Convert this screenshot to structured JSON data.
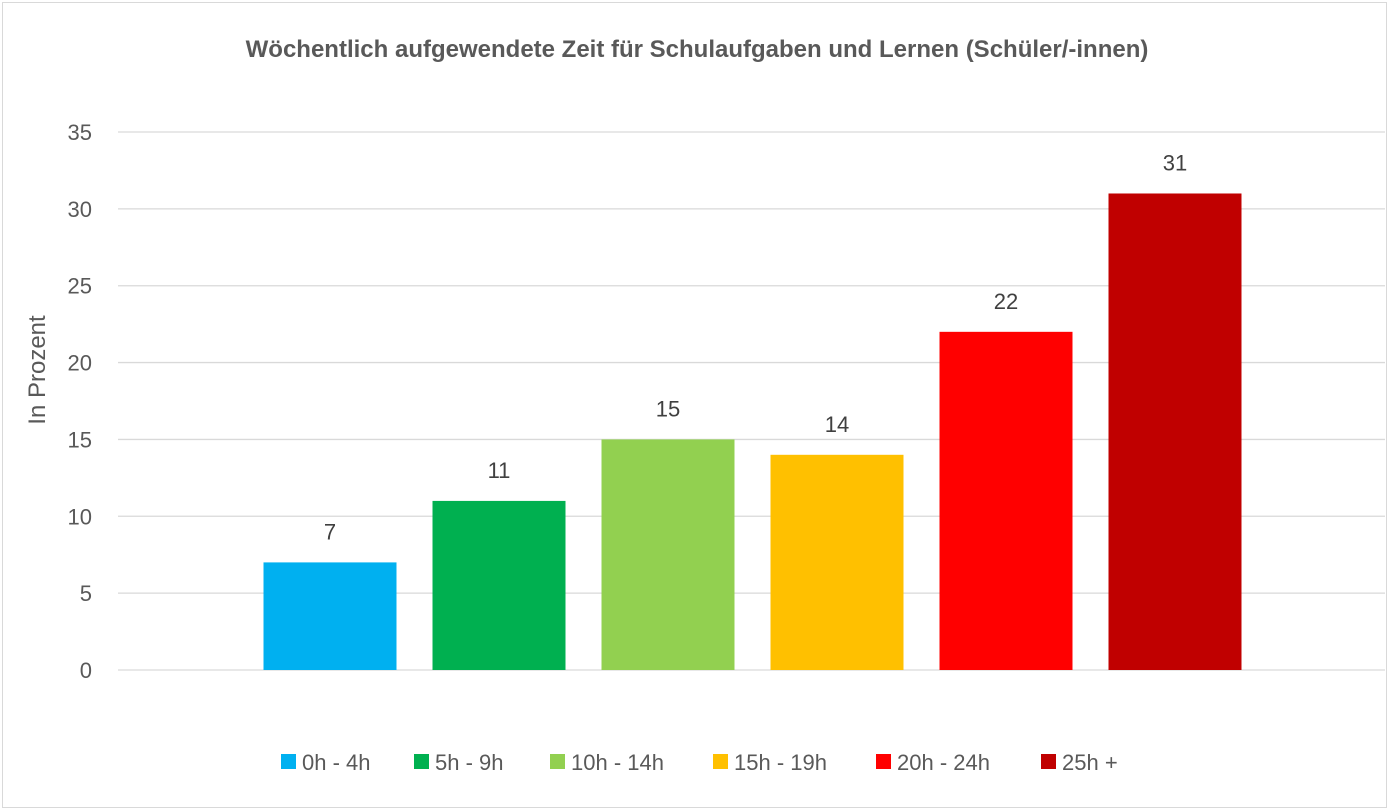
{
  "chart_data": {
    "type": "bar",
    "title": "Wöchentlich aufgewendete Zeit für Schulaufgaben und Lernen (Schüler/-innen)",
    "ylabel": "In Prozent",
    "xlabel": "",
    "categories": [
      "0h - 4h",
      "5h - 9h",
      "10h - 14h",
      "15h - 19h",
      "20h - 24h",
      "25h +"
    ],
    "values": [
      7,
      11,
      15,
      14,
      22,
      31
    ],
    "colors": [
      "#00b0f0",
      "#00b050",
      "#92d050",
      "#ffc000",
      "#ff0000",
      "#c00000"
    ],
    "ylim": [
      0,
      35
    ],
    "yticks": [
      0,
      5,
      10,
      15,
      20,
      25,
      30,
      35
    ],
    "grid": true,
    "legend": "bottom",
    "data_labels": true
  }
}
